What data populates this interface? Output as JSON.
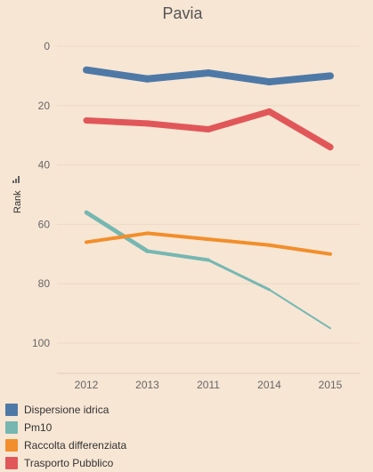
{
  "chart_data": {
    "type": "line",
    "title": "Pavia",
    "xlabel": "",
    "ylabel": "Rank",
    "categories": [
      "2012",
      "2013",
      "2011",
      "2014",
      "2015"
    ],
    "yticks": [
      0,
      20,
      40,
      60,
      80,
      100
    ],
    "ylim": [
      -5,
      110
    ],
    "y_reversed": true,
    "grid": true,
    "legend_position": "bottom",
    "series": [
      {
        "name": "Dispersione idrica",
        "color": "#4e79a7",
        "values": [
          8,
          11,
          9,
          12,
          10
        ]
      },
      {
        "name": "Pm10",
        "color": "#76b7b2",
        "values": [
          56,
          69,
          72,
          82,
          95
        ]
      },
      {
        "name": "Raccolta differenziata",
        "color": "#f28e2b",
        "values": [
          66,
          63,
          65,
          67,
          70
        ]
      },
      {
        "name": "Trasporto Pubblico",
        "color": "#e15759",
        "values": [
          25,
          26,
          28,
          22,
          34
        ]
      }
    ]
  }
}
